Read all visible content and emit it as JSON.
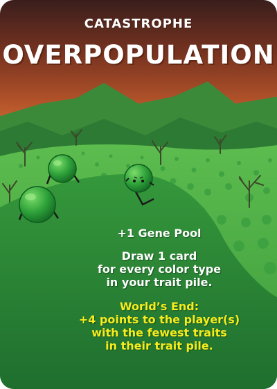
{
  "card": {
    "category": "CATASTROPHE",
    "title": "OVERPOPULATION",
    "gene_pool": "+1 Gene Pool",
    "draw_lines": [
      "Draw 1 card",
      "for every color type",
      "in your trait pile."
    ],
    "worlds_end_lines": [
      "World’s End:",
      "+4 points to the player(s)",
      "with the fewest traits",
      "in their trait pile."
    ]
  },
  "colors": {
    "sky_top": "#3a1e1c",
    "sky_mid": "#a84a22",
    "sky_low": "#e07a35",
    "hills": "#2f8a3c",
    "meadow": "#4fb24a",
    "creature": "#2da23a",
    "worlds_end_text": "#f6ec1e"
  }
}
